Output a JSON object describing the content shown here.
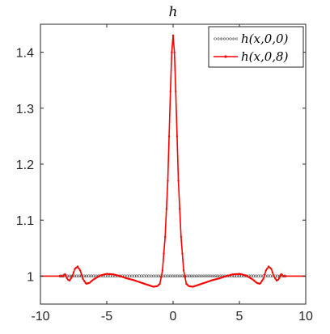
{
  "chart_data": {
    "type": "line",
    "title": "h",
    "xlabel": "",
    "ylabel": "",
    "xlim": [
      -10,
      10
    ],
    "ylim": [
      0.95,
      1.45
    ],
    "xticks": [
      "-10",
      "-5",
      "0",
      "5",
      "10"
    ],
    "xtick_values": [
      -10,
      -5,
      0,
      5,
      10
    ],
    "yticks": [
      "1",
      "1.1",
      "1.2",
      "1.3",
      "1.4"
    ],
    "ytick_values": [
      1,
      1.1,
      1.2,
      1.3,
      1.4
    ],
    "grid": false,
    "legend_placement": "top-right",
    "series": [
      {
        "name": "h(x,0,0)",
        "color": "#555555",
        "style": "dotted-circle-markers",
        "x": [
          -10,
          10
        ],
        "y": [
          1,
          1
        ]
      },
      {
        "name": "h(x,0,8)",
        "color": "#ff0000",
        "style": "solid-dot-markers",
        "x": [
          -10,
          -8.6,
          -8.3,
          -8.15,
          -7.95,
          -7.8,
          -7.6,
          -7.4,
          -7.2,
          -7.0,
          -6.8,
          -6.55,
          -6.3,
          -6.0,
          -5.5,
          -5.0,
          -4.5,
          -4.0,
          -3.5,
          -3.0,
          -2.5,
          -2.0,
          -1.5,
          -1.2,
          -1.0,
          -0.8,
          -0.6,
          -0.4,
          -0.3,
          -0.2,
          -0.1,
          0,
          0.1,
          0.2,
          0.3,
          0.4,
          0.6,
          0.8,
          1.0,
          1.2,
          1.5,
          2.0,
          2.5,
          3.0,
          3.5,
          4.0,
          4.5,
          5.0,
          5.5,
          6.0,
          6.3,
          6.55,
          6.8,
          7.0,
          7.2,
          7.4,
          7.6,
          7.8,
          7.95,
          8.15,
          8.3,
          8.6,
          10
        ],
        "y": [
          1,
          1,
          1.0,
          1.004,
          0.994,
          0.992,
          1.0,
          1.013,
          1.017,
          1.01,
          0.995,
          0.986,
          0.988,
          0.994,
          1.001,
          1.004,
          1.003,
          1.0,
          0.996,
          0.993,
          0.989,
          0.985,
          0.981,
          0.982,
          0.986,
          1.01,
          1.07,
          1.17,
          1.25,
          1.33,
          1.4,
          1.43,
          1.4,
          1.33,
          1.25,
          1.17,
          1.07,
          1.01,
          0.986,
          0.982,
          0.981,
          0.985,
          0.989,
          0.993,
          0.996,
          1.0,
          1.003,
          1.004,
          1.001,
          0.994,
          0.988,
          0.986,
          0.995,
          1.01,
          1.017,
          1.013,
          1.0,
          0.992,
          0.994,
          1.004,
          1.0,
          1,
          1
        ]
      }
    ]
  }
}
